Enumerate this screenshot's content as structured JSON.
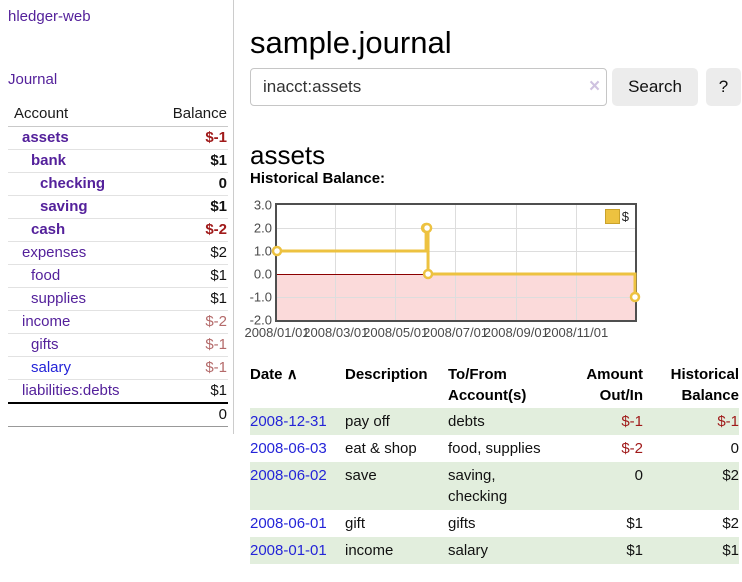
{
  "colors": {
    "link_purple": "#54219b",
    "link_blue": "#2424d8",
    "negative_strong": "#a01a1a",
    "negative_muted": "#b46a6a",
    "row_stripe_green": "#e2eedd",
    "chart_line_gold": "#edc240",
    "chart_negative_fill": "#fbdada",
    "chart_zero_line": "#8b0000"
  },
  "sidebar": {
    "app_title": "hledger-web",
    "journal_link": "Journal",
    "accounts": {
      "header_account": "Account",
      "header_balance": "Balance",
      "rows": [
        {
          "name": "assets",
          "balance": "$-1"
        },
        {
          "name": "bank",
          "balance": "$1"
        },
        {
          "name": "checking",
          "balance": "0"
        },
        {
          "name": "saving",
          "balance": "$1"
        },
        {
          "name": "cash",
          "balance": "$-2"
        },
        {
          "name": "expenses",
          "balance": "$2"
        },
        {
          "name": "food",
          "balance": "$1"
        },
        {
          "name": "supplies",
          "balance": "$1"
        },
        {
          "name": "income",
          "balance": "$-2"
        },
        {
          "name": "gifts",
          "balance": "$-1"
        },
        {
          "name": "salary",
          "balance": "$-1"
        },
        {
          "name": "liabilities:debts",
          "balance": "$1"
        }
      ],
      "total": "0"
    }
  },
  "main": {
    "title": "sample.journal",
    "search": {
      "value": "inacct:assets",
      "clear_icon": "×",
      "search_button": "Search",
      "help_button": "?"
    },
    "account_heading": "assets",
    "chart_title": "Historical Balance:",
    "register": {
      "sort_icon": "∧",
      "headers": {
        "date": "Date",
        "description": "Description",
        "accounts": "To/From Account(s)",
        "amount": "Amount Out/In",
        "balance": "Historical Balance"
      },
      "rows": [
        {
          "date": "2008-12-31",
          "description": "pay off",
          "accounts": "debts",
          "amount": "$-1",
          "balance": "$-1"
        },
        {
          "date": "2008-06-03",
          "description": "eat & shop",
          "accounts": "food, supplies",
          "amount": "$-2",
          "balance": "0"
        },
        {
          "date": "2008-06-02",
          "description": "save",
          "accounts": "saving,\nchecking",
          "amount": "0",
          "balance": "$2"
        },
        {
          "date": "2008-06-01",
          "description": "gift",
          "accounts": "gifts",
          "amount": "$1",
          "balance": "$2"
        },
        {
          "date": "2008-01-01",
          "description": "income",
          "accounts": "salary",
          "amount": "$1",
          "balance": "$1"
        }
      ]
    }
  },
  "chart_data": {
    "type": "line",
    "step": true,
    "title": "Historical Balance:",
    "series": [
      {
        "name": "$",
        "color": "#edc240",
        "points": [
          [
            "2008-01-01",
            1
          ],
          [
            "2008-06-01",
            2
          ],
          [
            "2008-06-02",
            2
          ],
          [
            "2008-06-03",
            0
          ],
          [
            "2008-12-31",
            -1
          ]
        ]
      }
    ],
    "xrange": [
      "2008-01-01",
      "2008-12-31"
    ],
    "ylim": [
      -2,
      3
    ],
    "yticks": [
      3,
      2,
      1,
      0,
      -1,
      -2
    ],
    "ytick_labels": [
      "3.0",
      "2.0",
      "1.0",
      "0.0",
      "-1.0",
      "-2.0"
    ],
    "xticks": [
      "2008-01-01",
      "2008-03-01",
      "2008-05-01",
      "2008-07-01",
      "2008-09-01",
      "2008-11-01"
    ],
    "xtick_labels": [
      "2008/01/01",
      "2008/03/01",
      "2008/05/01",
      "2008/07/01",
      "2008/09/01",
      "2008/11/01"
    ],
    "grid": true,
    "legend": {
      "label": "$",
      "position": "top-right"
    },
    "negative_region_color": "#fbdada",
    "zero_line_color": "#8b0000"
  }
}
